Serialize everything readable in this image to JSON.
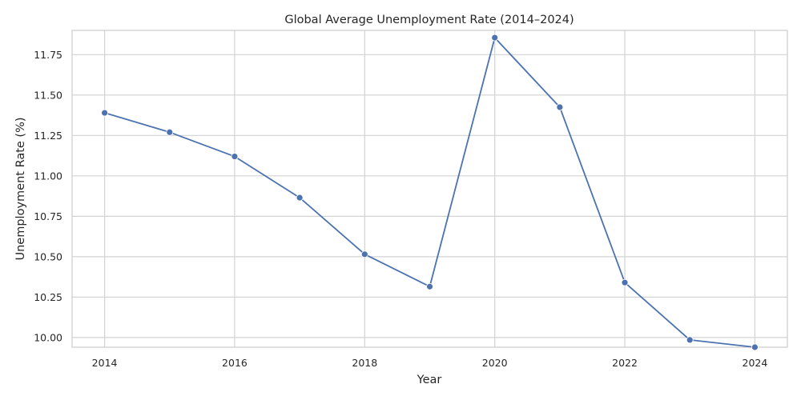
{
  "chart_data": {
    "type": "line",
    "title": "Global Average Unemployment Rate (2014–2024)",
    "xlabel": "Year",
    "ylabel": "Unemployment Rate (%)",
    "x": [
      2014,
      2015,
      2016,
      2017,
      2018,
      2019,
      2020,
      2021,
      2022,
      2023,
      2024
    ],
    "series": [
      {
        "values": [
          11.39,
          11.27,
          11.12,
          10.865,
          10.515,
          10.315,
          11.855,
          11.425,
          10.34,
          9.985,
          9.94
        ],
        "color": "#4c72b0",
        "marker": "circle"
      }
    ],
    "xticks": [
      "2014",
      "2016",
      "2018",
      "2020",
      "2022",
      "2024"
    ],
    "yticks": [
      "10.00",
      "10.25",
      "10.50",
      "10.75",
      "11.00",
      "11.25",
      "11.50",
      "11.75"
    ],
    "xlim": [
      2013.5,
      2024.5
    ],
    "ylim": [
      9.94,
      11.9
    ],
    "grid": true
  }
}
